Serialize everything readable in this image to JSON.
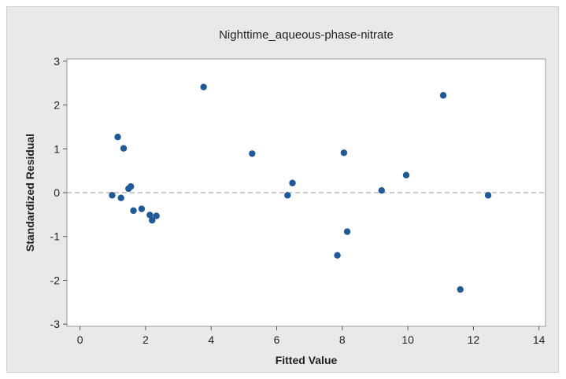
{
  "chart_data": {
    "type": "scatter",
    "title": "Nighttime_aqueous-phase-nitrate",
    "xlabel": "Fitted Value",
    "ylabel": "Standardized Residual",
    "xlim": [
      -0.4,
      14.2
    ],
    "ylim": [
      -3.05,
      3.05
    ],
    "xticks": [
      0,
      2,
      4,
      6,
      8,
      10,
      12,
      14
    ],
    "yticks": [
      -3,
      -2,
      -1,
      0,
      1,
      2,
      3
    ],
    "reference_line": 0,
    "grid": false,
    "point_color": "#1f5a96",
    "points": [
      {
        "x": 0.98,
        "y": -0.06
      },
      {
        "x": 1.15,
        "y": 1.27
      },
      {
        "x": 1.25,
        "y": -0.12
      },
      {
        "x": 1.33,
        "y": 1.01
      },
      {
        "x": 1.48,
        "y": 0.09
      },
      {
        "x": 1.55,
        "y": 0.14
      },
      {
        "x": 1.63,
        "y": -0.41
      },
      {
        "x": 1.88,
        "y": -0.37
      },
      {
        "x": 2.13,
        "y": -0.51
      },
      {
        "x": 2.2,
        "y": -0.63
      },
      {
        "x": 2.33,
        "y": -0.53
      },
      {
        "x": 3.77,
        "y": 2.41
      },
      {
        "x": 5.25,
        "y": 0.89
      },
      {
        "x": 6.33,
        "y": -0.06
      },
      {
        "x": 6.48,
        "y": 0.22
      },
      {
        "x": 7.85,
        "y": -1.43
      },
      {
        "x": 8.05,
        "y": 0.91
      },
      {
        "x": 8.15,
        "y": -0.89
      },
      {
        "x": 9.2,
        "y": 0.05
      },
      {
        "x": 9.95,
        "y": 0.4
      },
      {
        "x": 11.08,
        "y": 2.22
      },
      {
        "x": 11.6,
        "y": -2.21
      },
      {
        "x": 12.45,
        "y": -0.06
      }
    ]
  }
}
